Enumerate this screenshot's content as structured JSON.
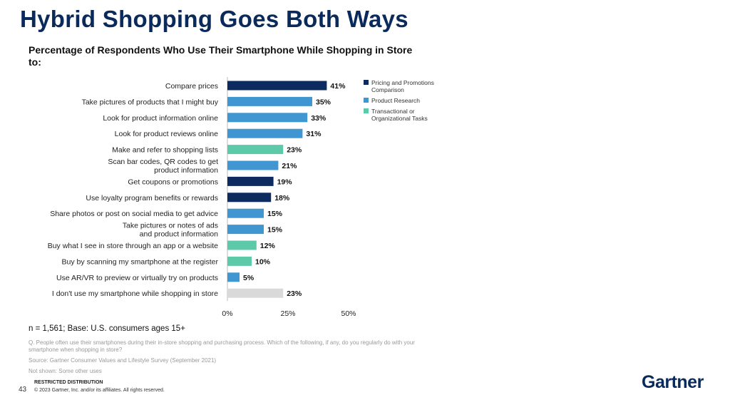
{
  "slide": {
    "title": "Hybrid Shopping Goes Both Ways",
    "sample_note": "n = 1,561; Base: U.S. consumers ages 15+",
    "question": "Q. People often use their smartphones during their in-store shopping and purchasing process. Which of the following, if any, do you regularly do with your smartphone when shopping in store?",
    "source": "Source: Gartner Consumer Values and Lifestyle Survey (September 2021)",
    "not_shown": "Not shown: Some other uses",
    "restricted": "RESTRICTED DISTRIBUTION",
    "page_number": "43",
    "copyright": "© 2023 Gartner, Inc. and/or its affiliates. All rights reserved.",
    "logo": "Gartner"
  },
  "chart_data": {
    "type": "bar",
    "orientation": "horizontal",
    "title": "Percentage of Respondents Who Use Their Smartphone While Shopping in Store to:",
    "xlim": [
      0,
      50
    ],
    "xticks": [
      "0%",
      "25%",
      "50%"
    ],
    "xtick_values": [
      0,
      25,
      50
    ],
    "grid": false,
    "legend_position": "right",
    "colors": {
      "pricing": "#0d2b5e",
      "research": "#3f96d1",
      "transactional": "#5ccaa9",
      "none": "#d9d9d9"
    },
    "legend": [
      {
        "key": "pricing",
        "label": "Pricing and Promotions Comparison"
      },
      {
        "key": "research",
        "label": "Product Research"
      },
      {
        "key": "transactional",
        "label": "Transactional or Organizational Tasks"
      }
    ],
    "categories": [
      "Compare prices",
      "Take pictures of products that I might buy",
      "Look for product information online",
      "Look for product reviews online",
      "Make and refer to shopping lists",
      "Scan bar codes, QR codes to get product information",
      "Get coupons or promotions",
      "Use loyalty program benefits or rewards",
      "Share photos or post on social media to get advice",
      "Take pictures or notes of ads and product information",
      "Buy what I see in store through an app or a website",
      "Buy by scanning my smartphone at the register",
      "Use AR/VR to preview or virtually try on products",
      "I don't use my smartphone while shopping in store"
    ],
    "category_lines": [
      [
        "Compare prices"
      ],
      [
        "Take pictures of products that I might buy"
      ],
      [
        "Look for product information online"
      ],
      [
        "Look for product reviews online"
      ],
      [
        "Make and refer to shopping lists"
      ],
      [
        "Scan bar codes, QR codes to get",
        "product information"
      ],
      [
        "Get coupons or promotions"
      ],
      [
        "Use loyalty program benefits or rewards"
      ],
      [
        "Share photos or post on social media to get advice"
      ],
      [
        "Take pictures or notes of ads",
        "and product information"
      ],
      [
        "Buy what I see in store through an app or a website"
      ],
      [
        "Buy by scanning my smartphone at the register"
      ],
      [
        "Use AR/VR to preview or virtually try on products"
      ],
      [
        "I don't use my smartphone while shopping in store"
      ]
    ],
    "values": [
      41,
      35,
      33,
      31,
      23,
      21,
      19,
      18,
      15,
      15,
      12,
      10,
      5,
      23
    ],
    "value_labels": [
      "41%",
      "35%",
      "33%",
      "31%",
      "23%",
      "21%",
      "19%",
      "18%",
      "15%",
      "15%",
      "12%",
      "10%",
      "5%",
      "23%"
    ],
    "groups": [
      "pricing",
      "research",
      "research",
      "research",
      "transactional",
      "research",
      "pricing",
      "pricing",
      "research",
      "research",
      "transactional",
      "transactional",
      "research",
      "none"
    ]
  }
}
